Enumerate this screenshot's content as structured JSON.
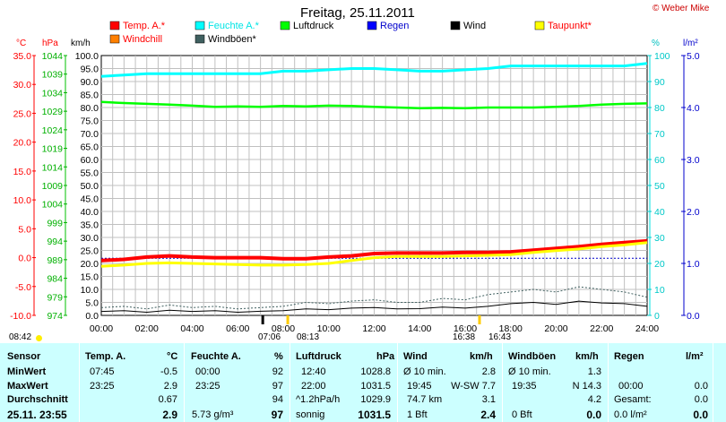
{
  "title": "Freitag, 25.11.2011",
  "copyright": "© Weber Mike",
  "legend": [
    {
      "label": "Temp. A.*",
      "color": "#ff0000",
      "text_color": "#ff0000"
    },
    {
      "label": "Feuchte A.*",
      "color": "#00ffff",
      "text_color": "#00e5e5"
    },
    {
      "label": "Luftdruck",
      "color": "#00ff00",
      "text_color": "#000000"
    },
    {
      "label": "Regen",
      "color": "#0000ff",
      "text_color": "#0000cc"
    },
    {
      "label": "Wind",
      "color": "#000000",
      "text_color": "#000000"
    },
    {
      "label": "Taupunkt*",
      "color": "#ffff00",
      "text_color": "#ff0000"
    },
    {
      "label": "Windchill",
      "color": "#ff8000",
      "text_color": "#ff0000"
    },
    {
      "label": "Windböen*",
      "color": "#406060",
      "text_color": "#000000"
    }
  ],
  "axis_units": {
    "temp": "°C",
    "hpa": "hPa",
    "kmh": "km/h",
    "pct": "%",
    "rain": "l/m²"
  },
  "sun": {
    "rise": "08:42",
    "set": "16:38",
    "event1": "07:06",
    "event2": "08:13",
    "event3": "16:43"
  },
  "chart_data": {
    "type": "line",
    "x": [
      "00:00",
      "01:00",
      "02:00",
      "03:00",
      "04:00",
      "05:00",
      "06:00",
      "07:00",
      "08:00",
      "09:00",
      "10:00",
      "11:00",
      "12:00",
      "13:00",
      "14:00",
      "15:00",
      "16:00",
      "17:00",
      "18:00",
      "19:00",
      "20:00",
      "21:00",
      "22:00",
      "23:00",
      "24:00"
    ],
    "x_ticks": [
      "00:00",
      "02:00",
      "04:00",
      "06:00",
      "08:00",
      "10:00",
      "12:00",
      "14:00",
      "16:00",
      "18:00",
      "20:00",
      "22:00",
      "24:00"
    ],
    "axes": {
      "temp": {
        "label": "°C",
        "ticks": [
          "35.0",
          "30.0",
          "25.0",
          "20.0",
          "15.0",
          "10.0",
          "5.0",
          "0.0",
          "-5.0",
          "-10.0"
        ],
        "range": [
          -10,
          35
        ]
      },
      "hpa": {
        "label": "hPa",
        "ticks": [
          "1044",
          "1039",
          "1034",
          "1029",
          "1024",
          "1019",
          "1014",
          "1009",
          "1004",
          "999",
          "994",
          "989",
          "984",
          "979",
          "974"
        ],
        "range": [
          974,
          1044
        ]
      },
      "kmh": {
        "label": "km/h",
        "ticks": [
          "100.0",
          "95.0",
          "90.0",
          "85.0",
          "80.0",
          "75.0",
          "70.0",
          "65.0",
          "60.0",
          "55.0",
          "50.0",
          "45.0",
          "40.0",
          "35.0",
          "30.0",
          "25.0",
          "20.0",
          "15.0",
          "10.0",
          "5.0",
          "0.0"
        ],
        "range": [
          0,
          100
        ]
      },
      "pct": {
        "label": "%",
        "ticks": [
          "100",
          "90",
          "80",
          "70",
          "60",
          "50",
          "40",
          "30",
          "20",
          "10",
          "0"
        ],
        "range": [
          0,
          100
        ]
      },
      "rain": {
        "label": "l/m²",
        "ticks": [
          "5.0",
          "4.0",
          "3.0",
          "2.0",
          "1.0",
          "0.0"
        ],
        "range": [
          0,
          5
        ]
      }
    },
    "series": [
      {
        "name": "Temp. A.*",
        "axis": "temp",
        "color": "#ff0000",
        "values": [
          -0.5,
          -0.3,
          0.1,
          0.3,
          0.1,
          0.0,
          0.0,
          0.0,
          -0.2,
          -0.2,
          0.1,
          0.3,
          0.7,
          0.8,
          0.8,
          0.8,
          0.9,
          0.9,
          1.0,
          1.3,
          1.6,
          1.9,
          2.3,
          2.6,
          2.9
        ]
      },
      {
        "name": "Taupunkt*",
        "axis": "temp",
        "color": "#ffff00",
        "values": [
          -1.5,
          -1.3,
          -1.0,
          -0.9,
          -1.0,
          -1.1,
          -1.2,
          -1.3,
          -1.3,
          -1.2,
          -1.0,
          -0.5,
          0.0,
          0.2,
          0.2,
          0.2,
          0.3,
          0.4,
          0.5,
          0.9,
          1.2,
          1.5,
          1.9,
          2.2,
          2.6
        ]
      },
      {
        "name": "Feuchte A.*",
        "axis": "pct",
        "color": "#00ffff",
        "values": [
          92,
          92.5,
          93,
          93,
          93,
          93,
          93,
          93,
          94,
          94,
          94.5,
          95,
          95,
          94.5,
          94,
          94,
          94.5,
          95,
          96,
          96,
          96,
          96,
          96,
          96,
          97
        ]
      },
      {
        "name": "Luftdruck",
        "axis": "hpa",
        "color": "#00ff00",
        "values": [
          1031.5,
          1031.2,
          1031.0,
          1030.8,
          1030.5,
          1030.2,
          1030.3,
          1030.2,
          1030.4,
          1030.3,
          1030.5,
          1030.4,
          1030.2,
          1030.0,
          1029.8,
          1029.9,
          1029.8,
          1030.0,
          1030.0,
          1030.0,
          1030.2,
          1030.4,
          1030.8,
          1031.0,
          1031.1
        ]
      },
      {
        "name": "Wind",
        "axis": "kmh",
        "color": "#000000",
        "values": [
          1.5,
          1.8,
          1.2,
          2.0,
          1.5,
          1.8,
          1.2,
          1.6,
          1.8,
          2.5,
          2.2,
          2.8,
          3.0,
          2.5,
          2.6,
          3.2,
          2.8,
          3.5,
          4.5,
          5.0,
          4.2,
          5.5,
          4.8,
          4.5,
          3.5
        ]
      },
      {
        "name": "Windböen*",
        "axis": "kmh",
        "color": "#406060",
        "values": [
          3,
          3.5,
          2.5,
          4,
          3,
          3.5,
          2.5,
          3,
          3.5,
          5,
          4.5,
          5.5,
          6,
          5,
          5,
          6.5,
          6,
          8,
          9,
          10,
          9,
          11,
          10,
          9,
          7
        ]
      }
    ],
    "rain_line": {
      "axis": "rain",
      "value": 1.1,
      "color": "#0000cc"
    }
  },
  "table": {
    "headers": {
      "sensor": "Sensor",
      "temp": "Temp. A.",
      "temp_unit": "°C",
      "hum": "Feuchte A.",
      "hum_unit": "%",
      "press": "Luftdruck",
      "press_unit": "hPa",
      "wind": "Wind",
      "wind_unit": "km/h",
      "gust": "Windböen",
      "gust_unit": "km/h",
      "rain": "Regen",
      "rain_unit": "l/m²"
    },
    "rows": [
      {
        "label": "MinWert",
        "temp_time": "07:45",
        "temp_val": "-0.5",
        "hum_time": "00:00",
        "hum_val": "92",
        "press_time": "12:40",
        "press_val": "1028.8",
        "wind_a": "Ø 10 min.",
        "wind_val": "2.8",
        "gust_a": "Ø 10 min.",
        "gust_val": "1.3",
        "rain_a": "",
        "rain_val": ""
      },
      {
        "label": "MaxWert",
        "temp_time": "23:25",
        "temp_val": "2.9",
        "hum_time": "23:25",
        "hum_val": "97",
        "press_time": "22:00",
        "press_val": "1031.5",
        "wind_a": "19:45",
        "wind_b": "W-SW 7.7",
        "wind_val": "",
        "gust_a": "19:35",
        "gust_val": "N 14.3",
        "rain_a": "00:00",
        "rain_val": "0.0"
      },
      {
        "label": "Durchschnitt",
        "temp_time": "",
        "temp_val": "0.67",
        "hum_time": "",
        "hum_val": "94",
        "press_time": "^1.2hPa/h",
        "press_val": "1029.9",
        "wind_a": "74.7 km",
        "wind_val": "3.1",
        "gust_a": "",
        "gust_val": "4.2",
        "rain_a": "Gesamt:",
        "rain_val": "0.0"
      },
      {
        "label": "25.11. 23:55",
        "temp_time": "",
        "temp_val": "2.9",
        "hum_time": "5.73 g/m³",
        "hum_val": "97",
        "press_time": "sonnig",
        "press_val": "1031.5",
        "wind_a": "1 Bft",
        "wind_val": "2.4",
        "gust_a": "0 Bft",
        "gust_val": "0.0",
        "rain_a": "0.0 l/m²",
        "rain_val": "0.0"
      }
    ]
  }
}
